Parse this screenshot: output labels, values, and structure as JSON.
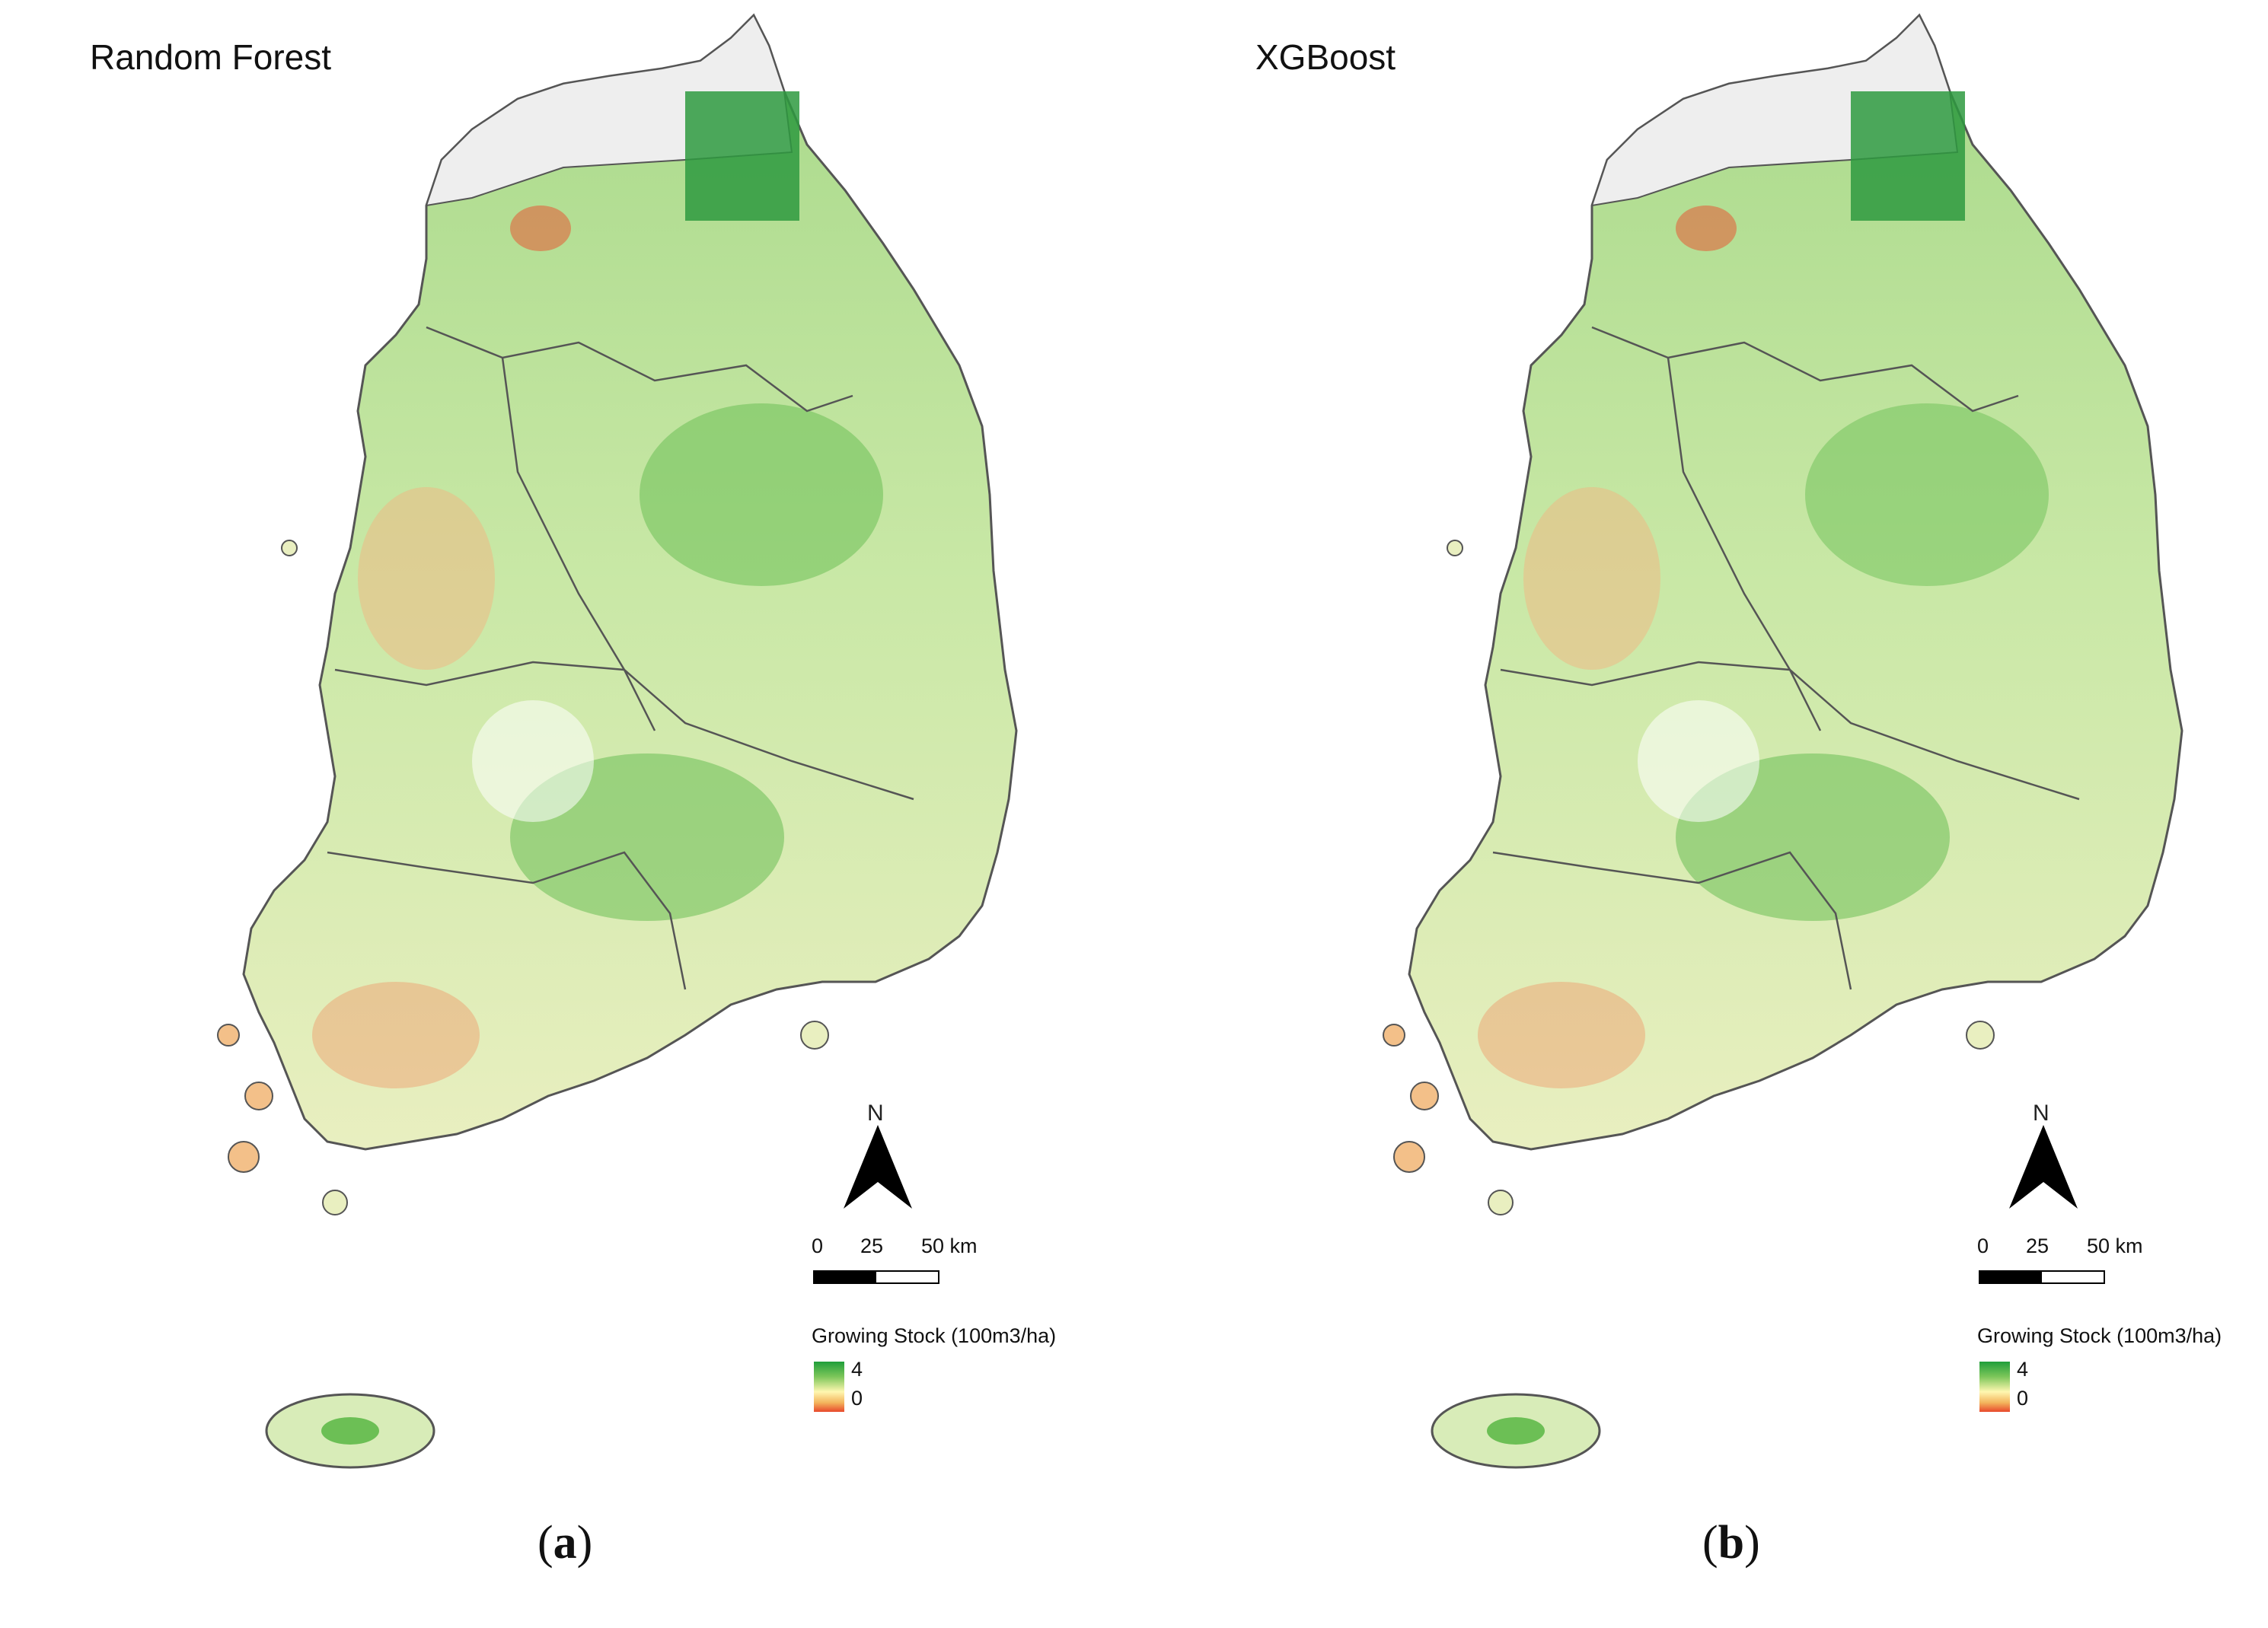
{
  "panels": [
    {
      "title": "Random Forest",
      "caption_open": "(",
      "caption_letter": "a",
      "caption_close": ")"
    },
    {
      "title": "XGBoost",
      "caption_open": "(",
      "caption_letter": "b",
      "caption_close": ")"
    }
  ],
  "north_label": "N",
  "scale_bar": {
    "tick_0": "0",
    "tick_25": "25",
    "tick_50": "50 km"
  },
  "legend": {
    "title": "Growing Stock (100m3/ha)",
    "max_label": "4",
    "min_label": "0",
    "colors": {
      "high": "#1f9e3a",
      "mid": "#fff7b0",
      "low": "#e8482b"
    }
  },
  "map_colors": {
    "no_data_north": "#eeeeee",
    "boundary": "#555555"
  }
}
